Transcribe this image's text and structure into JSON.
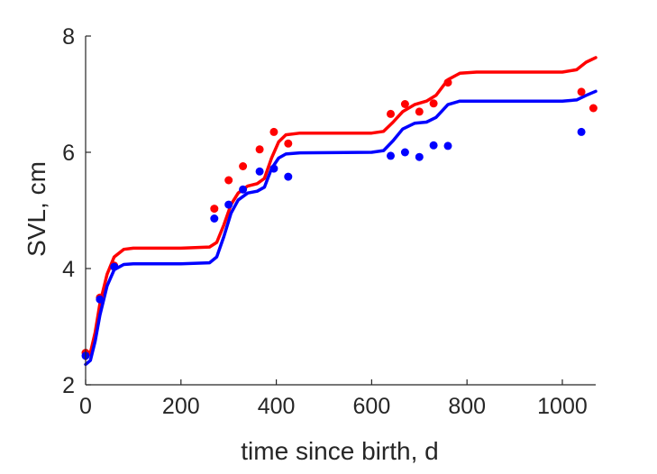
{
  "chart_data": {
    "type": "scatter",
    "xlabel": "time since birth, d",
    "ylabel": "SVL, cm",
    "xlim": [
      0,
      1070
    ],
    "ylim": [
      2,
      8
    ],
    "xticks": [
      0,
      200,
      400,
      600,
      800,
      1000
    ],
    "yticks": [
      2,
      4,
      6,
      8
    ],
    "grid": false,
    "legend": "none",
    "series": [
      {
        "kind": "points",
        "color": "#ff0000",
        "points": [
          [
            0,
            2.55
          ],
          [
            30,
            3.5
          ],
          [
            60,
            4.05
          ],
          [
            270,
            5.03
          ],
          [
            300,
            5.52
          ],
          [
            330,
            5.76
          ],
          [
            365,
            6.05
          ],
          [
            395,
            6.35
          ],
          [
            425,
            6.15
          ],
          [
            640,
            6.66
          ],
          [
            670,
            6.83
          ],
          [
            700,
            6.7
          ],
          [
            730,
            6.84
          ],
          [
            760,
            7.2
          ],
          [
            1040,
            7.04
          ],
          [
            1065,
            6.76
          ]
        ]
      },
      {
        "kind": "points",
        "color": "#0000ff",
        "points": [
          [
            0,
            2.5
          ],
          [
            30,
            3.47
          ],
          [
            60,
            4.03
          ],
          [
            270,
            4.86
          ],
          [
            300,
            5.1
          ],
          [
            330,
            5.36
          ],
          [
            365,
            5.67
          ],
          [
            395,
            5.72
          ],
          [
            425,
            5.58
          ],
          [
            640,
            5.94
          ],
          [
            670,
            6.0
          ],
          [
            700,
            5.92
          ],
          [
            730,
            6.12
          ],
          [
            760,
            6.11
          ],
          [
            1040,
            6.35
          ]
        ]
      },
      {
        "kind": "line",
        "color": "#ff0000",
        "points": [
          [
            0,
            2.45
          ],
          [
            10,
            2.55
          ],
          [
            20,
            2.9
          ],
          [
            30,
            3.4
          ],
          [
            45,
            3.9
          ],
          [
            60,
            4.2
          ],
          [
            80,
            4.33
          ],
          [
            100,
            4.35
          ],
          [
            200,
            4.35
          ],
          [
            260,
            4.37
          ],
          [
            275,
            4.45
          ],
          [
            290,
            4.75
          ],
          [
            305,
            5.1
          ],
          [
            320,
            5.3
          ],
          [
            340,
            5.42
          ],
          [
            360,
            5.46
          ],
          [
            375,
            5.55
          ],
          [
            390,
            5.9
          ],
          [
            405,
            6.18
          ],
          [
            420,
            6.3
          ],
          [
            450,
            6.33
          ],
          [
            600,
            6.33
          ],
          [
            625,
            6.36
          ],
          [
            645,
            6.52
          ],
          [
            665,
            6.7
          ],
          [
            690,
            6.82
          ],
          [
            715,
            6.88
          ],
          [
            735,
            6.98
          ],
          [
            760,
            7.25
          ],
          [
            785,
            7.36
          ],
          [
            820,
            7.38
          ],
          [
            1000,
            7.38
          ],
          [
            1030,
            7.42
          ],
          [
            1050,
            7.55
          ],
          [
            1070,
            7.63
          ]
        ]
      },
      {
        "kind": "line",
        "color": "#0000ff",
        "points": [
          [
            0,
            2.35
          ],
          [
            10,
            2.42
          ],
          [
            20,
            2.75
          ],
          [
            30,
            3.2
          ],
          [
            45,
            3.7
          ],
          [
            60,
            3.98
          ],
          [
            80,
            4.07
          ],
          [
            100,
            4.08
          ],
          [
            200,
            4.08
          ],
          [
            260,
            4.1
          ],
          [
            275,
            4.2
          ],
          [
            290,
            4.55
          ],
          [
            305,
            4.95
          ],
          [
            320,
            5.18
          ],
          [
            340,
            5.3
          ],
          [
            360,
            5.33
          ],
          [
            375,
            5.4
          ],
          [
            390,
            5.72
          ],
          [
            405,
            5.9
          ],
          [
            420,
            5.97
          ],
          [
            450,
            5.99
          ],
          [
            600,
            6.0
          ],
          [
            625,
            6.03
          ],
          [
            645,
            6.2
          ],
          [
            665,
            6.4
          ],
          [
            690,
            6.5
          ],
          [
            715,
            6.52
          ],
          [
            735,
            6.6
          ],
          [
            760,
            6.82
          ],
          [
            785,
            6.88
          ],
          [
            820,
            6.88
          ],
          [
            1000,
            6.88
          ],
          [
            1030,
            6.9
          ],
          [
            1050,
            6.98
          ],
          [
            1070,
            7.05
          ]
        ]
      }
    ]
  }
}
